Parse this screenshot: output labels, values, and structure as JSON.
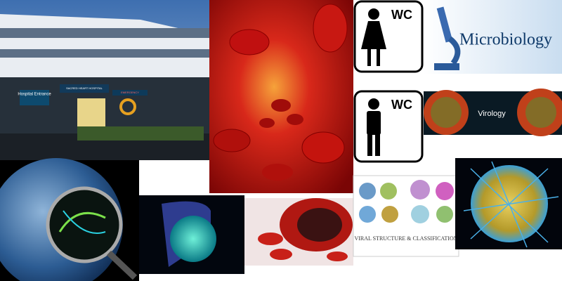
{
  "collage": {
    "hospital": {
      "banner": "SACRED HEART HOSPITAL",
      "sign": "Hospital Entrance",
      "emergency": "EMERGENCY"
    },
    "wc_female": {
      "label": "WC"
    },
    "microbiology": {
      "label": "Microbiology"
    },
    "wc_male": {
      "label": "WC"
    },
    "virology": {
      "label": "Virology"
    },
    "viral_slide": {
      "title": "VIRAL STRUCTURE & CLASSIFICATION"
    }
  }
}
